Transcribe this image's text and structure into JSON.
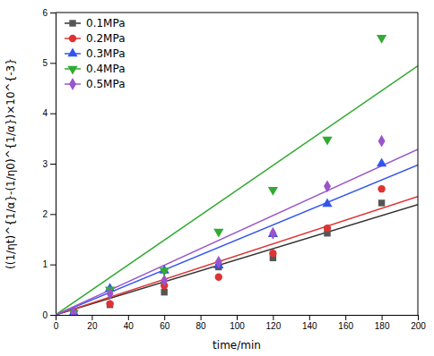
{
  "chart_data": {
    "type": "scatter",
    "xlabel": "time/min",
    "ylabel": "((1/ηt)^{1/α}-(1/η0)^{1/α})×10^{-3}",
    "xlim": [
      0,
      200
    ],
    "ylim": [
      0,
      6
    ],
    "xticks": [
      0,
      20,
      40,
      60,
      80,
      100,
      120,
      140,
      160,
      180,
      200
    ],
    "yticks": [
      0,
      1,
      2,
      3,
      4,
      5,
      6
    ],
    "grid": false,
    "legend": "upper left",
    "series": [
      {
        "name": "0.1MPa",
        "color": "#555555",
        "marker": "square",
        "x": [
          10,
          30,
          60,
          90,
          120,
          150,
          180
        ],
        "values": [
          0.04,
          0.2,
          0.45,
          0.95,
          1.13,
          1.62,
          2.22
        ],
        "fit": {
          "x": [
            0,
            200
          ],
          "values": [
            0,
            2.18804878
          ],
          "color": "#333333"
        }
      },
      {
        "name": "0.2MPa",
        "color": "#dd3333",
        "marker": "circle",
        "x": [
          10,
          30,
          60,
          90,
          120,
          150,
          180
        ],
        "values": [
          0.04,
          0.22,
          0.58,
          0.75,
          1.22,
          1.72,
          2.5
        ],
        "fit": {
          "x": [
            0,
            200
          ],
          "values": [
            0,
            2.3504878
          ],
          "color": "#dd3333"
        }
      },
      {
        "name": "0.3MPa",
        "color": "#3355ee",
        "marker": "triangle-up",
        "x": [
          10,
          30,
          60,
          90,
          120,
          150,
          180
        ],
        "values": [
          0.04,
          0.52,
          0.88,
          0.98,
          1.6,
          2.2,
          3.0
        ],
        "fit": {
          "x": [
            0,
            200
          ],
          "values": [
            0,
            2.97317073
          ],
          "color": "#3355ee"
        }
      },
      {
        "name": "0.4MPa",
        "color": "#33aa33",
        "marker": "triangle-down",
        "x": [
          10,
          30,
          60,
          90,
          120,
          150,
          180
        ],
        "values": [
          0.04,
          0.5,
          0.88,
          1.65,
          2.48,
          3.48,
          5.5
        ],
        "fit": {
          "x": [
            0,
            200
          ],
          "values": [
            0,
            4.94219512
          ],
          "color": "#33aa33"
        }
      },
      {
        "name": "0.5MPa",
        "color": "#9955cc",
        "marker": "diamond",
        "x": [
          10,
          30,
          60,
          90,
          120,
          150,
          180
        ],
        "values": [
          0.04,
          0.42,
          0.68,
          1.05,
          1.62,
          2.55,
          3.45
        ],
        "fit": {
          "x": [
            0,
            200
          ],
          "values": [
            0,
            3.28341463
          ],
          "color": "#9955cc"
        }
      }
    ]
  }
}
